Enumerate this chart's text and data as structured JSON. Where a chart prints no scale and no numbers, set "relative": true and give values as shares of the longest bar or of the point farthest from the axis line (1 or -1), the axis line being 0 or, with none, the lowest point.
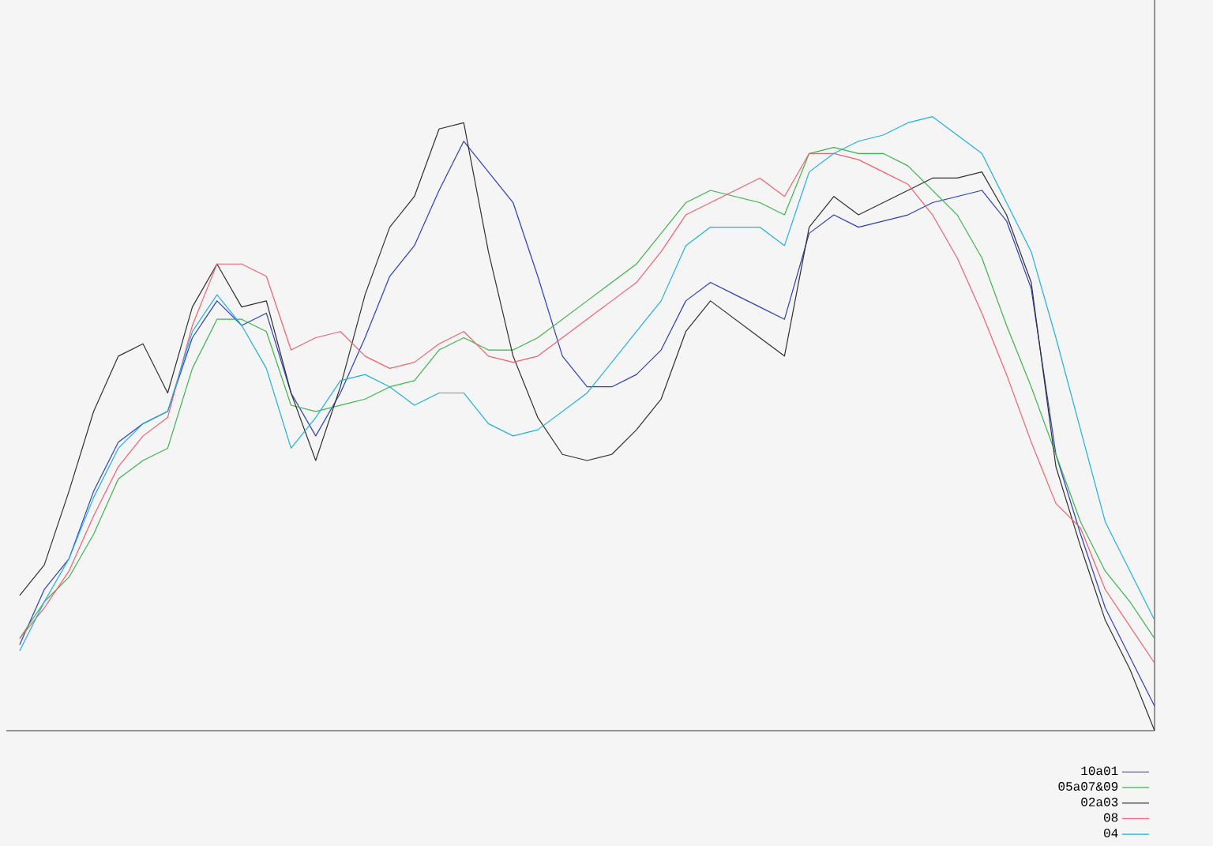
{
  "chart_data": {
    "type": "line",
    "relative": true,
    "legend": "bottom right",
    "marker": "none",
    "line_style": "solid",
    "categories": [
      null,
      null,
      null,
      null,
      null,
      null,
      null,
      null,
      null,
      null,
      null,
      null,
      null,
      null,
      null,
      null,
      null,
      null,
      null,
      null,
      null,
      null,
      null,
      null,
      null,
      null,
      null,
      null,
      null,
      null,
      null,
      null,
      null,
      null,
      null,
      null,
      null,
      null,
      null,
      null,
      null,
      null,
      null,
      null,
      null,
      null,
      null
    ],
    "series": [
      {
        "name": "10a01",
        "color": "#2b3fc0",
        "values": [
          0.14,
          0.23,
          0.28,
          0.39,
          0.47,
          0.5,
          0.52,
          0.64,
          0.7,
          0.66,
          0.68,
          0.55,
          0.48,
          0.55,
          0.64,
          0.74,
          0.79,
          0.88,
          0.96,
          0.91,
          0.86,
          0.74,
          0.61,
          0.56,
          0.56,
          0.58,
          0.62,
          0.7,
          0.73,
          0.71,
          0.69,
          0.67,
          0.81,
          0.84,
          0.82,
          0.83,
          0.84,
          0.86,
          0.87,
          0.88,
          0.83,
          0.72,
          0.45,
          0.32,
          0.2,
          0.12,
          0.04
        ]
      },
      {
        "name": "05a07&09",
        "color": "#3cb44a",
        "values": [
          0.15,
          0.21,
          0.25,
          0.32,
          0.41,
          0.44,
          0.46,
          0.59,
          0.67,
          0.67,
          0.65,
          0.53,
          0.52,
          0.53,
          0.54,
          0.56,
          0.57,
          0.62,
          0.64,
          0.62,
          0.62,
          0.64,
          0.67,
          0.7,
          0.73,
          0.76,
          0.81,
          0.86,
          0.88,
          0.87,
          0.86,
          0.84,
          0.94,
          0.95,
          0.94,
          0.94,
          0.92,
          0.88,
          0.84,
          0.77,
          0.66,
          0.56,
          0.45,
          0.34,
          0.26,
          0.21,
          0.15
        ]
      },
      {
        "name": "02a03",
        "color": "#303030",
        "values": [
          0.22,
          0.27,
          0.39,
          0.52,
          0.61,
          0.63,
          0.55,
          0.69,
          0.76,
          0.69,
          0.7,
          0.55,
          0.44,
          0.56,
          0.71,
          0.82,
          0.87,
          0.98,
          0.99,
          0.78,
          0.61,
          0.51,
          0.45,
          0.44,
          0.45,
          0.49,
          0.54,
          0.65,
          0.7,
          0.67,
          0.64,
          0.61,
          0.82,
          0.87,
          0.84,
          0.86,
          0.88,
          0.9,
          0.9,
          0.91,
          0.84,
          0.73,
          0.43,
          0.3,
          0.18,
          0.1,
          0
        ]
      },
      {
        "name": "08",
        "color": "#f06070",
        "values": [
          0.15,
          0.2,
          0.26,
          0.35,
          0.43,
          0.48,
          0.51,
          0.66,
          0.76,
          0.76,
          0.74,
          0.62,
          0.64,
          0.65,
          0.61,
          0.59,
          0.6,
          0.63,
          0.65,
          0.61,
          0.6,
          0.61,
          0.64,
          0.67,
          0.7,
          0.73,
          0.78,
          0.84,
          0.86,
          0.88,
          0.9,
          0.87,
          0.94,
          0.94,
          0.93,
          0.91,
          0.89,
          0.84,
          0.77,
          0.68,
          0.58,
          0.47,
          0.37,
          0.33,
          0.23,
          0.17,
          0.11
        ]
      },
      {
        "name": "04",
        "color": "#20b0e0",
        "values": [
          0.13,
          0.21,
          0.28,
          0.38,
          0.46,
          0.5,
          0.52,
          0.65,
          0.71,
          0.66,
          0.59,
          0.46,
          0.51,
          0.57,
          0.58,
          0.56,
          0.53,
          0.55,
          0.55,
          0.5,
          0.48,
          0.49,
          0.52,
          0.55,
          0.6,
          0.65,
          0.7,
          0.79,
          0.82,
          0.82,
          0.82,
          0.79,
          0.91,
          0.94,
          0.96,
          0.97,
          0.99,
          1,
          0.97,
          0.94,
          0.86,
          0.78,
          0.64,
          0.49,
          0.34,
          0.26,
          0.18
        ]
      }
    ]
  }
}
